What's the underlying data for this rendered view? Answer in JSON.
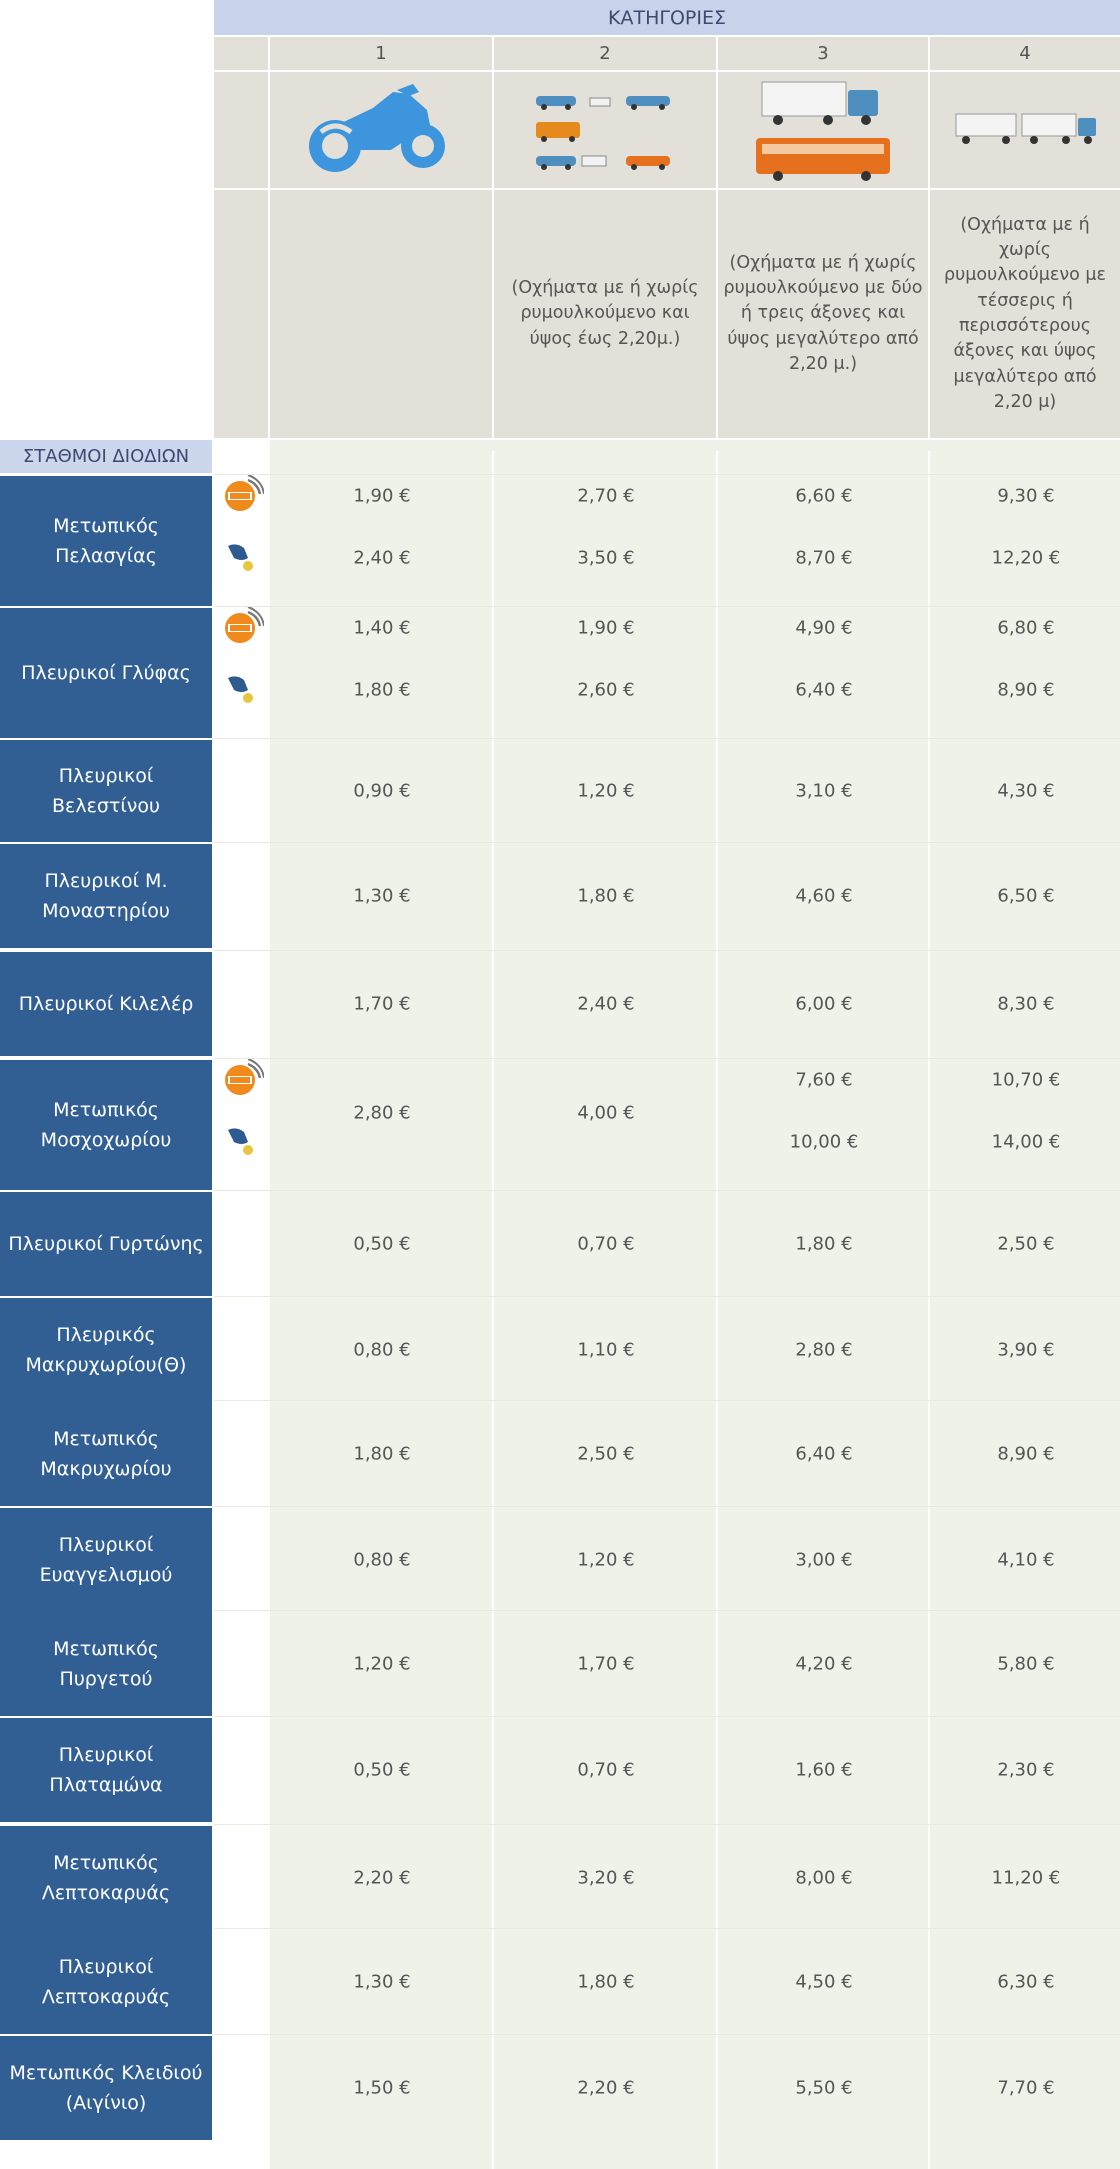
{
  "header": {
    "categories_title": "ΚΑΤΗΓΟΡΙΕΣ",
    "stations_title": "ΣΤΑΘΜΟΙ ΔΙΟΔΙΩΝ",
    "categories": [
      {
        "number": "1",
        "icon": "motorcycle-icon",
        "description": ""
      },
      {
        "number": "2",
        "icon": "cars-vans-icon",
        "description": "(Οχήματα με ή χωρίς ρυμουλκούμενο και ύψος έως 2,20μ.)"
      },
      {
        "number": "3",
        "icon": "truck-bus-icon",
        "description": "(Οχήματα με ή χωρίς ρυμουλκούμενο με δύο ή τρεις άξονες και ύψος μεγαλύτερο από 2,20 μ.)"
      },
      {
        "number": "4",
        "icon": "truck-trailer-icon",
        "description": "(Οχήματα με ή χωρίς ρυμουλκούμενο με τέσσερις ή περισσότερους άξονες και ύψος μεγαλύτερο από 2,20 μ)"
      }
    ]
  },
  "colors": {
    "header_blue": "#c8d2ea",
    "station_blue": "#315f94",
    "header_grey": "#e2e0d8",
    "data_bg": "#eef2e9",
    "eway_orange": "#f08a1c"
  },
  "stations": [
    {
      "name": "Μετωπικός Πελασγίας",
      "prices": [
        [
          "1,90 €",
          "2,70 €",
          "6,60 €",
          "9,30 €"
        ],
        [
          "2,40 €",
          "3,50 €",
          "8,70 €",
          "12,20 €"
        ]
      ]
    },
    {
      "name": "Πλευρικοί Γλύφας",
      "prices": [
        [
          "1,40 €",
          "1,90 €",
          "4,90 €",
          "6,80 €"
        ],
        [
          "1,80 €",
          "2,60 €",
          "6,40 €",
          "8,90 €"
        ]
      ]
    },
    {
      "name": "Πλευρικοί Βελεστίνου",
      "prices": [
        [
          "0,90 €",
          "1,20 €",
          "3,10 €",
          "4,30 €"
        ]
      ]
    },
    {
      "name": "Πλευρικοί Μ. Μοναστηρίου",
      "prices": [
        [
          "1,30 €",
          "1,80 €",
          "4,60 €",
          "6,50 €"
        ]
      ]
    },
    {
      "name": "Πλευρικοί Κιλελέρ",
      "prices": [
        [
          "1,70 €",
          "2,40 €",
          "6,00 €",
          "8,30 €"
        ]
      ]
    },
    {
      "name": "Μετωπικός Μοσχοχωρίου",
      "prices": [
        [
          "2,80 €",
          "4,00 €",
          "7,60 €",
          "10,70 €"
        ],
        [
          "",
          "",
          "10,00 €",
          "14,00 €"
        ]
      ]
    },
    {
      "name": "Πλευρικοί Γυρτώνης",
      "prices": [
        [
          "0,50 €",
          "0,70 €",
          "1,80 €",
          "2,50 €"
        ]
      ]
    },
    {
      "name": "Πλευρικός Μακρυχωρίου(Θ)",
      "prices": [
        [
          "0,80 €",
          "1,10 €",
          "2,80 €",
          "3,90 €"
        ]
      ]
    },
    {
      "name": "Μετωπικός Μακρυχωρίου",
      "prices": [
        [
          "1,80 €",
          "2,50 €",
          "6,40 €",
          "8,90 €"
        ]
      ]
    },
    {
      "name": "Πλευρικοί Ευαγγελισμού",
      "prices": [
        [
          "0,80 €",
          "1,20 €",
          "3,00 €",
          "4,10 €"
        ]
      ]
    },
    {
      "name": "Μετωπικός Πυργετού",
      "prices": [
        [
          "1,20 €",
          "1,70 €",
          "4,20 €",
          "5,80 €"
        ]
      ]
    },
    {
      "name": "Πλευρικοί Πλαταμώνα",
      "prices": [
        [
          "0,50 €",
          "0,70 €",
          "1,60 €",
          "2,30 €"
        ]
      ]
    },
    {
      "name": "Μετωπικός Λεπτοκαρυάς",
      "prices": [
        [
          "2,20 €",
          "3,20 €",
          "8,00 €",
          "11,20 €"
        ]
      ]
    },
    {
      "name": "Πλευρικοί Λεπτοκαρυάς",
      "prices": [
        [
          "1,30 €",
          "1,80 €",
          "4,50 €",
          "6,30 €"
        ]
      ]
    },
    {
      "name": "Μετωπικός Κλειδιού (Αιγίνιο)",
      "prices": [
        [
          "1,50 €",
          "2,20 €",
          "5,50 €",
          "7,70 €"
        ]
      ]
    }
  ],
  "payment_icons": {
    "eway": "eway-tag-icon",
    "cash": "cash-hand-icon"
  }
}
